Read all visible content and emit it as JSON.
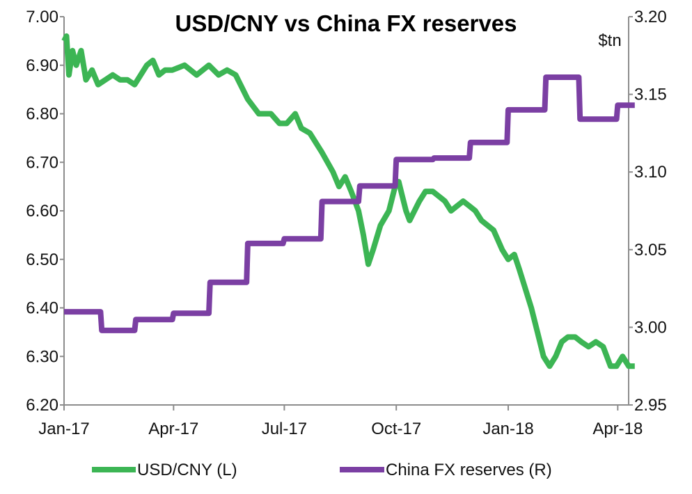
{
  "chart_data": {
    "type": "line",
    "title": "USD/CNY vs China FX reserves",
    "right_unit": "$tn",
    "x_ticks": [
      "Jan-17",
      "Apr-17",
      "Jul-17",
      "Oct-17",
      "Jan-18",
      "Apr-18"
    ],
    "left_axis": {
      "min": 6.2,
      "max": 7.0,
      "ticks": [
        "6.20",
        "6.30",
        "6.40",
        "6.50",
        "6.60",
        "6.70",
        "6.80",
        "6.90",
        "7.00"
      ]
    },
    "right_axis": {
      "min": 2.95,
      "max": 3.2,
      "ticks": [
        "2.95",
        "3.00",
        "3.05",
        "3.10",
        "3.15",
        "3.20"
      ]
    },
    "grid": false,
    "legend_position": "bottom",
    "colors": {
      "usdcny": "#3cb554",
      "reserves": "#7b3fa3",
      "axis": "#8c8c8c"
    },
    "series": [
      {
        "name": "USD/CNY (L)",
        "axis": "left",
        "points": [
          [
            "2017-01-01",
            6.95
          ],
          [
            "2017-01-03",
            6.96
          ],
          [
            "2017-01-05",
            6.88
          ],
          [
            "2017-01-08",
            6.93
          ],
          [
            "2017-01-11",
            6.9
          ],
          [
            "2017-01-15",
            6.93
          ],
          [
            "2017-01-19",
            6.87
          ],
          [
            "2017-01-24",
            6.89
          ],
          [
            "2017-01-29",
            6.86
          ],
          [
            "2017-02-04",
            6.87
          ],
          [
            "2017-02-10",
            6.88
          ],
          [
            "2017-02-16",
            6.87
          ],
          [
            "2017-02-22",
            6.87
          ],
          [
            "2017-02-28",
            6.86
          ],
          [
            "2017-03-05",
            6.88
          ],
          [
            "2017-03-10",
            6.9
          ],
          [
            "2017-03-15",
            6.91
          ],
          [
            "2017-03-20",
            6.88
          ],
          [
            "2017-03-25",
            6.89
          ],
          [
            "2017-03-31",
            6.89
          ],
          [
            "2017-04-10",
            6.9
          ],
          [
            "2017-04-20",
            6.88
          ],
          [
            "2017-04-30",
            6.9
          ],
          [
            "2017-05-08",
            6.88
          ],
          [
            "2017-05-15",
            6.89
          ],
          [
            "2017-05-22",
            6.88
          ],
          [
            "2017-06-01",
            6.83
          ],
          [
            "2017-06-10",
            6.8
          ],
          [
            "2017-06-20",
            6.8
          ],
          [
            "2017-06-27",
            6.78
          ],
          [
            "2017-07-03",
            6.78
          ],
          [
            "2017-07-10",
            6.8
          ],
          [
            "2017-07-15",
            6.77
          ],
          [
            "2017-07-22",
            6.76
          ],
          [
            "2017-08-01",
            6.72
          ],
          [
            "2017-08-10",
            6.68
          ],
          [
            "2017-08-15",
            6.65
          ],
          [
            "2017-08-20",
            6.67
          ],
          [
            "2017-08-25",
            6.64
          ],
          [
            "2017-08-31",
            6.6
          ],
          [
            "2017-09-04",
            6.55
          ],
          [
            "2017-09-08",
            6.49
          ],
          [
            "2017-09-12",
            6.52
          ],
          [
            "2017-09-18",
            6.57
          ],
          [
            "2017-09-25",
            6.6
          ],
          [
            "2017-09-30",
            6.65
          ],
          [
            "2017-10-03",
            6.66
          ],
          [
            "2017-10-06",
            6.63
          ],
          [
            "2017-10-09",
            6.6
          ],
          [
            "2017-10-12",
            6.58
          ],
          [
            "2017-10-16",
            6.6
          ],
          [
            "2017-10-20",
            6.62
          ],
          [
            "2017-10-25",
            6.64
          ],
          [
            "2017-10-31",
            6.64
          ],
          [
            "2017-11-05",
            6.63
          ],
          [
            "2017-11-10",
            6.62
          ],
          [
            "2017-11-15",
            6.6
          ],
          [
            "2017-11-20",
            6.61
          ],
          [
            "2017-11-25",
            6.62
          ],
          [
            "2017-11-30",
            6.61
          ],
          [
            "2017-12-05",
            6.6
          ],
          [
            "2017-12-10",
            6.58
          ],
          [
            "2017-12-20",
            6.56
          ],
          [
            "2017-12-27",
            6.52
          ],
          [
            "2018-01-01",
            6.5
          ],
          [
            "2018-01-06",
            6.51
          ],
          [
            "2018-01-10",
            6.48
          ],
          [
            "2018-01-15",
            6.44
          ],
          [
            "2018-01-20",
            6.4
          ],
          [
            "2018-01-25",
            6.35
          ],
          [
            "2018-01-30",
            6.3
          ],
          [
            "2018-02-04",
            6.28
          ],
          [
            "2018-02-09",
            6.3
          ],
          [
            "2018-02-14",
            6.33
          ],
          [
            "2018-02-19",
            6.34
          ],
          [
            "2018-02-25",
            6.34
          ],
          [
            "2018-03-02",
            6.33
          ],
          [
            "2018-03-08",
            6.32
          ],
          [
            "2018-03-14",
            6.33
          ],
          [
            "2018-03-20",
            6.32
          ],
          [
            "2018-03-26",
            6.28
          ],
          [
            "2018-03-31",
            6.28
          ],
          [
            "2018-04-05",
            6.3
          ],
          [
            "2018-04-10",
            6.28
          ],
          [
            "2018-04-15",
            6.28
          ]
        ]
      },
      {
        "name": "China FX reserves (R)",
        "axis": "right",
        "points": [
          [
            "2017-01-01",
            3.01
          ],
          [
            "2017-01-31",
            3.01
          ],
          [
            "2017-02-01",
            2.998
          ],
          [
            "2017-02-28",
            2.998
          ],
          [
            "2017-03-01",
            3.005
          ],
          [
            "2017-03-31",
            3.005
          ],
          [
            "2017-04-01",
            3.009
          ],
          [
            "2017-04-30",
            3.009
          ],
          [
            "2017-05-01",
            3.029
          ],
          [
            "2017-05-31",
            3.029
          ],
          [
            "2017-06-01",
            3.054
          ],
          [
            "2017-06-30",
            3.054
          ],
          [
            "2017-07-01",
            3.057
          ],
          [
            "2017-07-31",
            3.057
          ],
          [
            "2017-08-01",
            3.081
          ],
          [
            "2017-08-31",
            3.081
          ],
          [
            "2017-09-01",
            3.091
          ],
          [
            "2017-09-30",
            3.091
          ],
          [
            "2017-10-01",
            3.108
          ],
          [
            "2017-10-31",
            3.108
          ],
          [
            "2017-11-01",
            3.109
          ],
          [
            "2017-11-30",
            3.109
          ],
          [
            "2017-12-01",
            3.119
          ],
          [
            "2017-12-31",
            3.119
          ],
          [
            "2018-01-01",
            3.14
          ],
          [
            "2018-01-31",
            3.14
          ],
          [
            "2018-02-01",
            3.161
          ],
          [
            "2018-02-28",
            3.161
          ],
          [
            "2018-03-01",
            3.134
          ],
          [
            "2018-03-31",
            3.134
          ],
          [
            "2018-04-01",
            3.143
          ],
          [
            "2018-04-15",
            3.143
          ]
        ]
      }
    ]
  }
}
